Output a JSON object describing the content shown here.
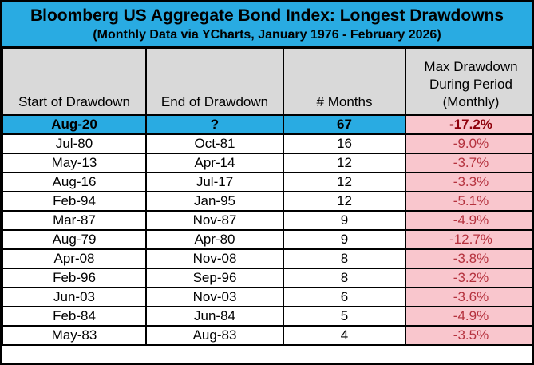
{
  "header": {
    "title": "Bloomberg US Aggregate Bond Index: Longest Drawdowns",
    "subtitle": "(Monthly Data via YCharts, January 1976 - February 2026)"
  },
  "table": {
    "columns": [
      "Start of Drawdown",
      "End of Drawdown",
      "# Months",
      "Max Drawdown\nDuring Period\n(Monthly)"
    ],
    "rows": [
      {
        "start": "Aug-20",
        "end": "?",
        "months": "67",
        "max_drawdown": "-17.2%",
        "highlight": true
      },
      {
        "start": "Jul-80",
        "end": "Oct-81",
        "months": "16",
        "max_drawdown": "-9.0%",
        "highlight": false
      },
      {
        "start": "May-13",
        "end": "Apr-14",
        "months": "12",
        "max_drawdown": "-3.7%",
        "highlight": false
      },
      {
        "start": "Aug-16",
        "end": "Jul-17",
        "months": "12",
        "max_drawdown": "-3.3%",
        "highlight": false
      },
      {
        "start": "Feb-94",
        "end": "Jan-95",
        "months": "12",
        "max_drawdown": "-5.1%",
        "highlight": false
      },
      {
        "start": "Mar-87",
        "end": "Nov-87",
        "months": "9",
        "max_drawdown": "-4.9%",
        "highlight": false
      },
      {
        "start": "Aug-79",
        "end": "Apr-80",
        "months": "9",
        "max_drawdown": "-12.7%",
        "highlight": false
      },
      {
        "start": "Apr-08",
        "end": "Nov-08",
        "months": "8",
        "max_drawdown": "-3.8%",
        "highlight": false
      },
      {
        "start": "Feb-96",
        "end": "Sep-96",
        "months": "8",
        "max_drawdown": "-3.2%",
        "highlight": false
      },
      {
        "start": "Jun-03",
        "end": "Nov-03",
        "months": "6",
        "max_drawdown": "-3.6%",
        "highlight": false
      },
      {
        "start": "Feb-84",
        "end": "Jun-84",
        "months": "5",
        "max_drawdown": "-4.9%",
        "highlight": false
      },
      {
        "start": "May-83",
        "end": "Aug-83",
        "months": "4",
        "max_drawdown": "-3.5%",
        "highlight": false
      }
    ]
  },
  "colors": {
    "highlight_cyan": "#29ABE2",
    "header_gray": "#D9D9D9",
    "drawdown_pink": "#F9C6CD",
    "drawdown_red": "#B5323E",
    "drawdown_red_bold": "#8E000B",
    "border_black": "#000000"
  },
  "chart_data": {
    "type": "table",
    "title": "Bloomberg US Aggregate Bond Index: Longest Drawdowns",
    "subtitle": "(Monthly Data via YCharts, January 1976 - February 2026)",
    "columns": [
      "Start of Drawdown",
      "End of Drawdown",
      "# Months",
      "Max Drawdown During Period (Monthly)"
    ],
    "rows": [
      [
        "Aug-20",
        "?",
        67,
        -17.2
      ],
      [
        "Jul-80",
        "Oct-81",
        16,
        -9.0
      ],
      [
        "May-13",
        "Apr-14",
        12,
        -3.7
      ],
      [
        "Aug-16",
        "Jul-17",
        12,
        -3.3
      ],
      [
        "Feb-94",
        "Jan-95",
        12,
        -5.1
      ],
      [
        "Mar-87",
        "Nov-87",
        9,
        -4.9
      ],
      [
        "Aug-79",
        "Apr-80",
        9,
        -12.7
      ],
      [
        "Apr-08",
        "Nov-08",
        8,
        -3.8
      ],
      [
        "Feb-96",
        "Sep-96",
        8,
        -3.2
      ],
      [
        "Jun-03",
        "Nov-03",
        6,
        -3.6
      ],
      [
        "Feb-84",
        "Jun-84",
        5,
        -4.9
      ],
      [
        "May-83",
        "Aug-83",
        4,
        -3.5
      ]
    ],
    "notes": "Row 1 (Aug-20) is the ongoing drawdown, highlighted in cyan; max drawdown column shaded pink with red text",
    "max_drawdown_units": "percent"
  }
}
